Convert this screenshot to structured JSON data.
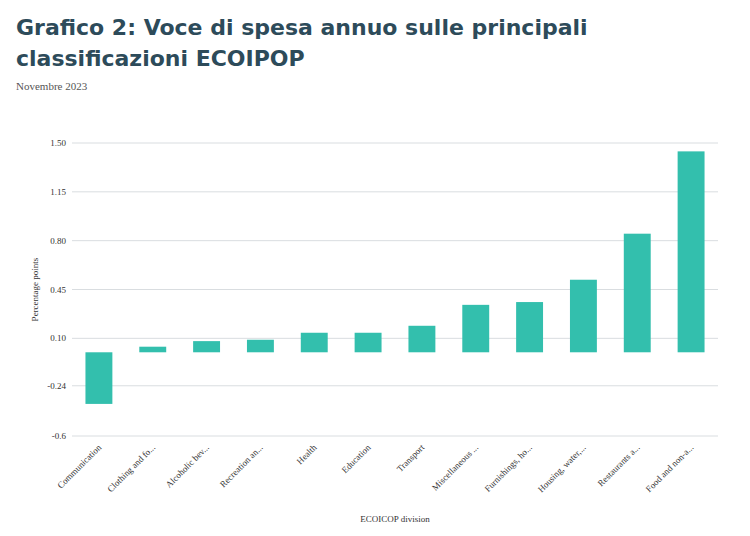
{
  "chart_data": {
    "type": "bar",
    "title": "Grafico 2: Voce di spesa annuo sulle principali classificazioni ECOIPOP",
    "subtitle": "Novembre 2023",
    "x_label": "ECOICOP division",
    "y_label": "Percentage points",
    "categories": [
      "Communication",
      "Clothing and fo...",
      "Alcoholic bev...",
      "Recreation an...",
      "Health",
      "Education",
      "Transport",
      "Miscellaneous ...",
      "Furnishings, ho...",
      "Housing, water,...",
      "Restaurants a...",
      "Food and non-a..."
    ],
    "values": [
      -0.37,
      0.04,
      0.08,
      0.09,
      0.14,
      0.14,
      0.19,
      0.34,
      0.36,
      0.52,
      0.85,
      1.44
    ],
    "color": "#33bfad",
    "ylim": [
      -0.6,
      1.5
    ],
    "yticks": [
      -0.6,
      -0.24,
      {
        "value": 0.1,
        "label": "0.10"
      },
      0.45,
      {
        "value": 0.8,
        "label": "0.80"
      },
      1.15,
      {
        "value": 1.5,
        "label": "1.50"
      }
    ],
    "grid": true
  }
}
